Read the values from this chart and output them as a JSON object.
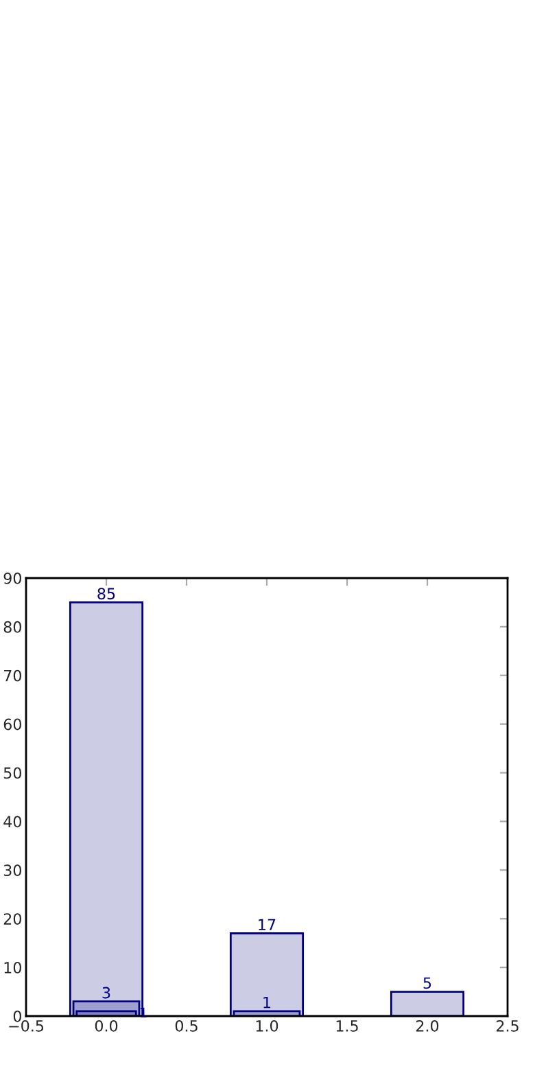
{
  "chart_data": {
    "type": "bar",
    "x": [
      0,
      1,
      2
    ],
    "series": [
      {
        "color": "#cccce5",
        "values": [
          85,
          17,
          5
        ]
      },
      {
        "color": "#9f9fd0",
        "values": [
          3,
          1,
          null
        ]
      },
      {
        "color": "#8080c0",
        "values": [
          1,
          null,
          null
        ]
      }
    ],
    "xlim": [
      -0.5,
      2.5
    ],
    "xticks": [
      {
        "value": -0.5,
        "label": "−0.5"
      },
      {
        "value": 0,
        "label": "0.0"
      },
      {
        "value": 0.5,
        "label": "0.5"
      },
      {
        "value": 1,
        "label": "1.0"
      },
      {
        "value": 1.5,
        "label": "1.5"
      },
      {
        "value": 2,
        "label": "2.0"
      },
      {
        "value": 2.5,
        "label": "2.5"
      }
    ],
    "ylim": [
      0,
      90
    ],
    "yticks": [
      0,
      10,
      20,
      30,
      40,
      50,
      60,
      70,
      80,
      90
    ],
    "data_labels": true,
    "grid": false
  }
}
